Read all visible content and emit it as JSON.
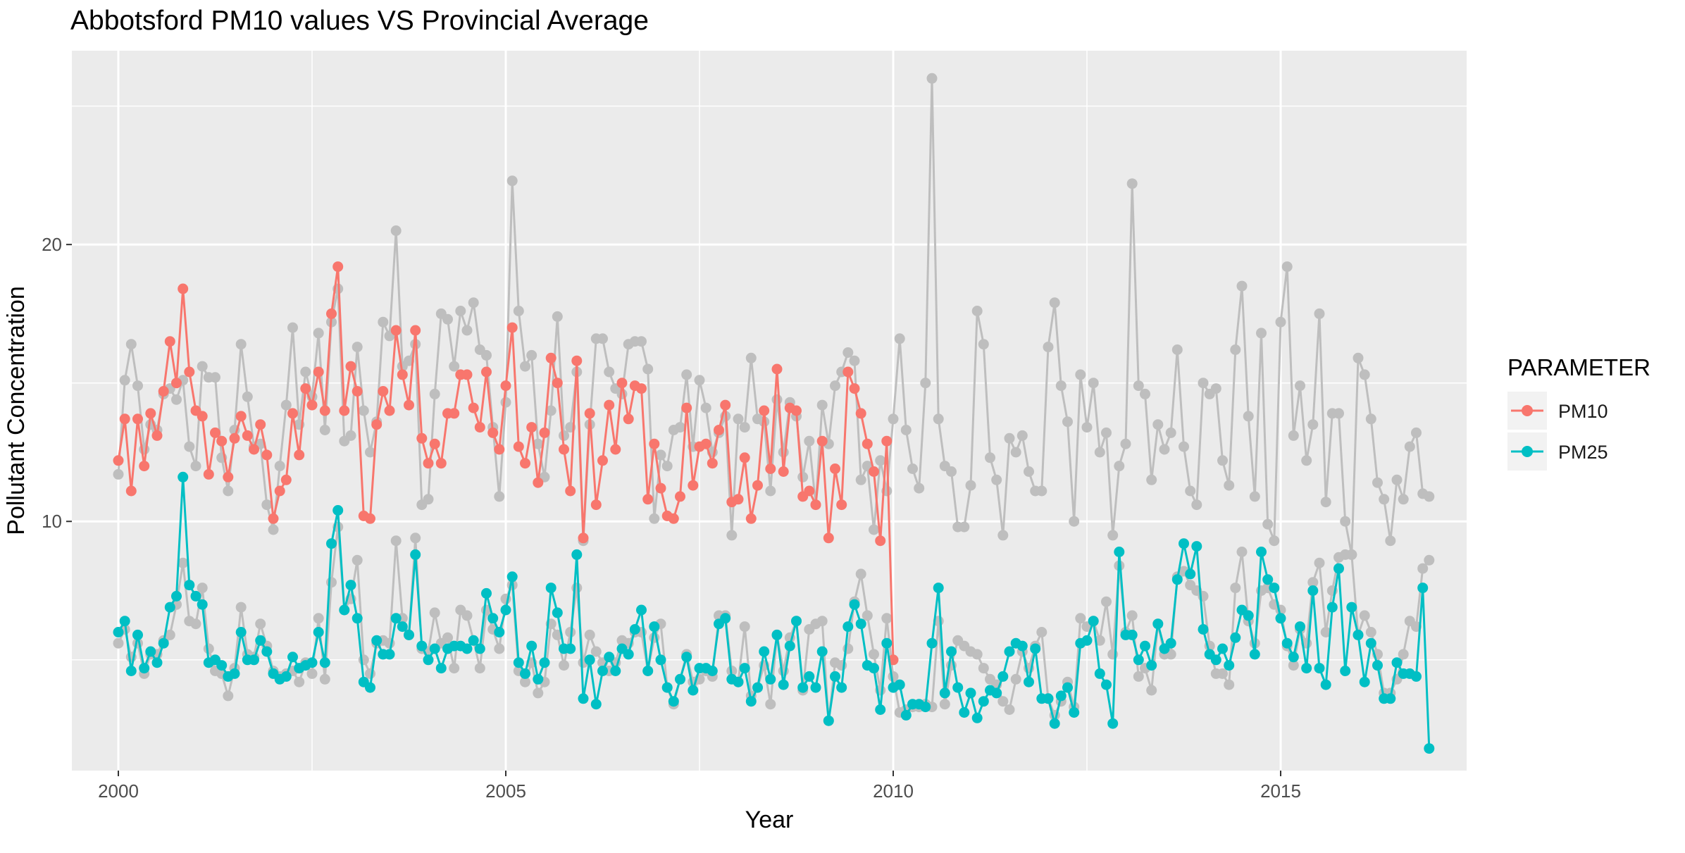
{
  "chart_data": {
    "type": "line",
    "title": "Abbotsford PM10 values VS Provincial Average",
    "xlabel": "Year",
    "ylabel": "Pollutant Concentration",
    "xlim": [
      1999.4,
      2017.4
    ],
    "ylim": [
      1.0,
      27.0
    ],
    "x_ticks": [
      2000,
      2005,
      2010,
      2015
    ],
    "x_tick_labels": [
      "2000",
      "2005",
      "2010",
      "2015"
    ],
    "y_ticks": [
      10,
      20
    ],
    "y_tick_labels": [
      "10",
      "20"
    ],
    "grid": true,
    "legend": {
      "title": "PARAMETER",
      "position": "right"
    },
    "colors": {
      "PM10": "#F8766D",
      "PM25": "#00BFC4",
      "provincial": "#BEBEBE",
      "panel": "#EBEBEB",
      "grid": "#FFFFFF"
    },
    "series": [
      {
        "name": "PM10",
        "color": "#F8766D",
        "x_start": 2000,
        "x_step": 0.0833333,
        "values": [
          12.2,
          13.7,
          11.1,
          13.7,
          12.0,
          13.9,
          13.1,
          14.7,
          16.5,
          15.0,
          18.4,
          15.4,
          14.0,
          13.8,
          11.7,
          13.2,
          12.9,
          11.6,
          13.0,
          13.8,
          13.1,
          12.6,
          13.5,
          12.4,
          10.1,
          11.1,
          11.5,
          13.9,
          12.4,
          14.8,
          14.2,
          15.4,
          14.0,
          17.5,
          19.2,
          14.0,
          15.6,
          14.7,
          10.2,
          10.1,
          13.5,
          14.7,
          14.0,
          16.9,
          15.3,
          14.2,
          16.9,
          13.0,
          12.1,
          12.8,
          12.1,
          13.9,
          13.9,
          15.3,
          15.3,
          14.1,
          13.4,
          15.4,
          13.2,
          12.6,
          14.9,
          17.0,
          12.7,
          12.1,
          13.4,
          11.4,
          13.2,
          15.9,
          15.0,
          12.6,
          11.1,
          15.8,
          9.4,
          13.9,
          10.6,
          12.2,
          14.2,
          12.6,
          15.0,
          13.7,
          14.9,
          14.8,
          10.8,
          12.8,
          11.2,
          10.2,
          10.1,
          10.9,
          14.1,
          11.3,
          12.7,
          12.8,
          12.1,
          13.3,
          14.2,
          10.7,
          10.8,
          12.3,
          10.1,
          11.3,
          14.0,
          11.9,
          15.5,
          11.8,
          14.1,
          14.0,
          10.9,
          11.1,
          10.6,
          12.9,
          9.4,
          11.9,
          10.6,
          15.4,
          14.8,
          13.9,
          12.8,
          11.8,
          9.3,
          12.9,
          5.0
        ]
      },
      {
        "name": "PM25",
        "color": "#00BFC4",
        "x_start": 2000,
        "x_step": 0.0833333,
        "values": [
          6.0,
          6.4,
          4.6,
          5.9,
          4.7,
          5.3,
          4.9,
          5.6,
          6.9,
          7.3,
          11.6,
          7.7,
          7.3,
          7.0,
          4.9,
          5.0,
          4.8,
          4.4,
          4.5,
          6.0,
          5.0,
          5.0,
          5.7,
          5.3,
          4.5,
          4.3,
          4.4,
          5.1,
          4.7,
          4.8,
          4.9,
          6.0,
          4.9,
          9.2,
          10.4,
          6.8,
          7.7,
          6.5,
          4.2,
          4.0,
          5.7,
          5.2,
          5.2,
          6.5,
          6.2,
          5.9,
          8.8,
          5.5,
          5.0,
          5.4,
          4.7,
          5.4,
          5.5,
          5.5,
          5.4,
          5.7,
          5.4,
          7.4,
          6.5,
          6.0,
          6.8,
          8.0,
          4.9,
          4.5,
          5.5,
          4.3,
          4.9,
          7.6,
          6.7,
          5.4,
          5.4,
          8.8,
          3.6,
          5.0,
          3.4,
          4.6,
          5.1,
          4.6,
          5.4,
          5.2,
          6.1,
          6.8,
          4.6,
          6.2,
          5.0,
          4.0,
          3.5,
          4.3,
          5.1,
          3.9,
          4.7,
          4.7,
          4.6,
          6.3,
          6.5,
          4.3,
          4.2,
          4.7,
          3.5,
          4.0,
          5.3,
          4.3,
          5.9,
          4.1,
          5.5,
          6.4,
          4.0,
          4.4,
          4.0,
          5.3,
          2.8,
          4.4,
          4.0,
          6.2,
          7.0,
          6.3,
          4.8,
          4.7,
          3.2,
          5.6,
          4.0,
          4.1,
          3.0,
          3.4,
          3.4,
          3.3,
          5.6,
          7.6,
          3.8,
          5.3,
          4.0,
          3.1,
          3.8,
          2.9,
          3.5,
          3.9,
          3.8,
          4.4,
          5.3,
          5.6,
          5.5,
          4.2,
          5.4,
          3.6,
          3.6,
          2.7,
          3.7,
          4.0,
          3.1,
          5.6,
          5.7,
          6.4,
          4.5,
          4.1,
          2.7,
          8.9,
          5.9,
          5.9,
          5.0,
          5.5,
          4.8,
          6.3,
          5.4,
          5.6,
          7.9,
          9.2,
          8.1,
          9.1,
          6.1,
          5.2,
          5.0,
          5.4,
          4.8,
          5.8,
          6.8,
          6.6,
          5.2,
          8.9,
          7.9,
          7.6,
          6.5,
          5.6,
          5.1,
          6.2,
          4.7,
          7.5,
          4.7,
          4.1,
          6.9,
          8.3,
          4.6,
          6.9,
          5.9,
          4.2,
          5.6,
          4.8,
          3.6,
          3.6,
          4.9,
          4.5,
          4.5,
          4.4,
          7.6,
          1.8
        ]
      },
      {
        "name": "",
        "color": "#BEBEBE",
        "x_start": 2000,
        "x_step": 0.0833333,
        "values": [
          11.7,
          15.1,
          16.4,
          14.9,
          12.6,
          13.5,
          13.3,
          14.6,
          14.8,
          14.4,
          15.1,
          12.7,
          12.0,
          15.6,
          15.2,
          15.2,
          12.3,
          11.1,
          13.3,
          16.4,
          14.5,
          12.7,
          12.8,
          10.6,
          9.7,
          12.0,
          14.2,
          17.0,
          13.5,
          15.4,
          14.5,
          16.8,
          13.3,
          17.2,
          18.4,
          12.9,
          13.1,
          16.3,
          14.0,
          12.5,
          13.6,
          17.2,
          16.7,
          20.5,
          15.6,
          15.8,
          16.4,
          10.6,
          10.8,
          14.6,
          17.5,
          17.3,
          15.6,
          17.6,
          16.9,
          17.9,
          16.2,
          16.0,
          13.4,
          10.9,
          14.3,
          22.3,
          17.6,
          15.6,
          16.0,
          12.8,
          11.6,
          14.0,
          17.4,
          13.1,
          13.4,
          15.4,
          9.3,
          13.5,
          16.6,
          16.6,
          15.4,
          14.8,
          14.6,
          16.4,
          16.5,
          16.5,
          15.5,
          10.1,
          12.4,
          12.0,
          13.3,
          13.4,
          15.3,
          12.7,
          15.1,
          14.1,
          12.5,
          13.2,
          13.8,
          9.5,
          13.7,
          13.4,
          15.9,
          13.7,
          13.6,
          11.1,
          14.4,
          12.5,
          14.3,
          13.8,
          11.6,
          12.9,
          10.6,
          14.2,
          12.8,
          14.9,
          15.4,
          16.1,
          15.8,
          11.5,
          12.0,
          9.7,
          12.2,
          11.1,
          13.7,
          16.6,
          13.3,
          11.9,
          11.2,
          15.0,
          26.0,
          13.7,
          12.0,
          11.8,
          9.8,
          9.8,
          11.3,
          17.6,
          16.4,
          12.3,
          11.5,
          9.5,
          13.0,
          12.5,
          13.1,
          11.8,
          11.1,
          11.1,
          16.3,
          17.9,
          14.9,
          13.6,
          10.0,
          15.3,
          13.4,
          15.0,
          12.5,
          13.2,
          9.5,
          12.0,
          12.8,
          22.2,
          14.9,
          14.6,
          11.5,
          13.5,
          12.6,
          13.2,
          16.2,
          12.7,
          11.1,
          10.6,
          15.0,
          14.6,
          14.8,
          12.2,
          11.3,
          16.2,
          18.5,
          13.8,
          10.9,
          16.8,
          9.9,
          9.3,
          17.2,
          19.2,
          13.1,
          14.9,
          12.2,
          13.5,
          17.5,
          10.7,
          13.9,
          13.9,
          10.0,
          8.8,
          15.9,
          15.3,
          13.7,
          11.4,
          10.8,
          9.3,
          11.5,
          10.8,
          12.7,
          13.2,
          11.0,
          10.9
        ]
      },
      {
        "name": "",
        "color": "#BEBEBE",
        "x_start": 2000,
        "x_step": 0.0833333,
        "values": [
          5.6,
          6.1,
          5.1,
          5.6,
          4.5,
          5.2,
          5.2,
          5.7,
          5.9,
          7.0,
          8.5,
          6.4,
          6.3,
          7.6,
          5.4,
          4.6,
          4.5,
          3.7,
          4.7,
          6.9,
          5.2,
          5.1,
          6.3,
          5.5,
          4.6,
          4.4,
          4.5,
          4.6,
          4.2,
          4.9,
          4.5,
          6.5,
          4.3,
          7.8,
          9.8,
          6.8,
          7.2,
          8.6,
          5.0,
          4.5,
          5.6,
          5.7,
          5.6,
          9.3,
          6.5,
          5.9,
          9.4,
          5.4,
          5.3,
          6.7,
          5.6,
          5.8,
          4.7,
          6.8,
          6.6,
          5.7,
          4.7,
          6.8,
          6.1,
          5.4,
          7.2,
          7.7,
          4.6,
          4.2,
          4.9,
          3.8,
          4.2,
          6.3,
          5.9,
          4.8,
          6.0,
          7.6,
          4.9,
          5.9,
          5.3,
          4.9,
          4.6,
          4.9,
          5.7,
          5.6,
          6.0,
          6.0,
          4.6,
          5.8,
          6.3,
          4.0,
          3.4,
          4.3,
          5.2,
          4.2,
          4.3,
          4.6,
          4.4,
          6.6,
          6.6,
          4.6,
          4.2,
          6.2,
          3.7,
          4.0,
          4.8,
          3.4,
          5.9,
          4.6,
          5.8,
          6.4,
          3.9,
          6.1,
          6.3,
          6.4,
          2.8,
          4.9,
          4.8,
          5.4,
          7.1,
          8.1,
          6.6,
          5.2,
          3.9,
          6.5,
          4.4,
          3.1,
          3.2,
          3.3,
          3.3,
          3.4,
          3.3,
          6.4,
          3.4,
          4.8,
          5.7,
          5.5,
          5.3,
          5.2,
          4.7,
          4.3,
          4.1,
          3.5,
          3.2,
          4.3,
          5.3,
          4.7,
          5.5,
          6.0,
          3.6,
          3.0,
          3.5,
          4.2,
          3.3,
          6.5,
          6.2,
          6.4,
          5.7,
          7.1,
          5.2,
          8.4,
          6.0,
          6.6,
          4.4,
          4.7,
          3.9,
          6.3,
          5.2,
          5.2,
          8.0,
          8.2,
          7.7,
          7.5,
          7.3,
          5.5,
          4.5,
          4.5,
          4.1,
          7.6,
          8.9,
          6.4,
          5.6,
          7.5,
          7.6,
          7.0,
          6.8,
          5.5,
          4.8,
          6.1,
          5.6,
          7.8,
          8.5,
          6.0,
          7.5,
          8.7,
          8.8,
          8.8,
          5.9,
          6.6,
          6.0,
          5.2,
          3.8,
          3.8,
          4.3,
          5.2,
          6.4,
          6.2,
          8.3,
          8.6
        ]
      }
    ]
  }
}
